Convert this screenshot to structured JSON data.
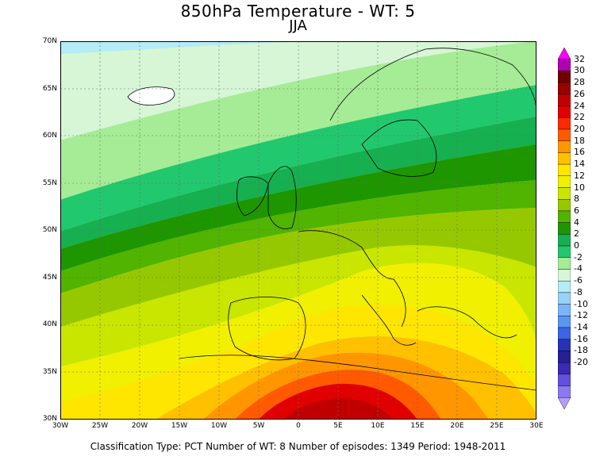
{
  "title": "850hPa Temperature - WT: 5",
  "subtitle": "JJA",
  "footer": "Classification Type: PCT Number of WT: 8 Number of episodes: 1349 Period: 1948-2011",
  "latitude_labels": [
    "70N",
    "65N",
    "60N",
    "55N",
    "50N",
    "45N",
    "40N",
    "35N",
    "30N"
  ],
  "longitude_labels": [
    "30W",
    "25W",
    "20W",
    "15W",
    "10W",
    "5W",
    "0",
    "5E",
    "10E",
    "15E",
    "20E",
    "25E",
    "30E"
  ],
  "colorbar": {
    "labels": [
      "32",
      "30",
      "28",
      "26",
      "24",
      "22",
      "20",
      "18",
      "16",
      "14",
      "12",
      "10",
      "8",
      "6",
      "4",
      "2",
      "0",
      "-2",
      "-4",
      "-6",
      "-8",
      "-10",
      "-12",
      "-14",
      "-16",
      "-18",
      "-20"
    ],
    "colors": [
      "#ff00ff",
      "#b000b0",
      "#700000",
      "#9a0000",
      "#c00000",
      "#e00000",
      "#ff2a00",
      "#ff5a00",
      "#ff9600",
      "#ffc000",
      "#ffe600",
      "#f0f000",
      "#c8e600",
      "#96c800",
      "#50b400",
      "#1e9600",
      "#16b050",
      "#22c86e",
      "#a6ec96",
      "#d6f6d6",
      "#b4ecf8",
      "#96d2fa",
      "#7ab4fa",
      "#5a96f0",
      "#3c64e6",
      "#2832b4",
      "#281e96",
      "#3c2ab4",
      "#6450dc",
      "#8c78f0",
      "#b49cfa"
    ]
  }
}
